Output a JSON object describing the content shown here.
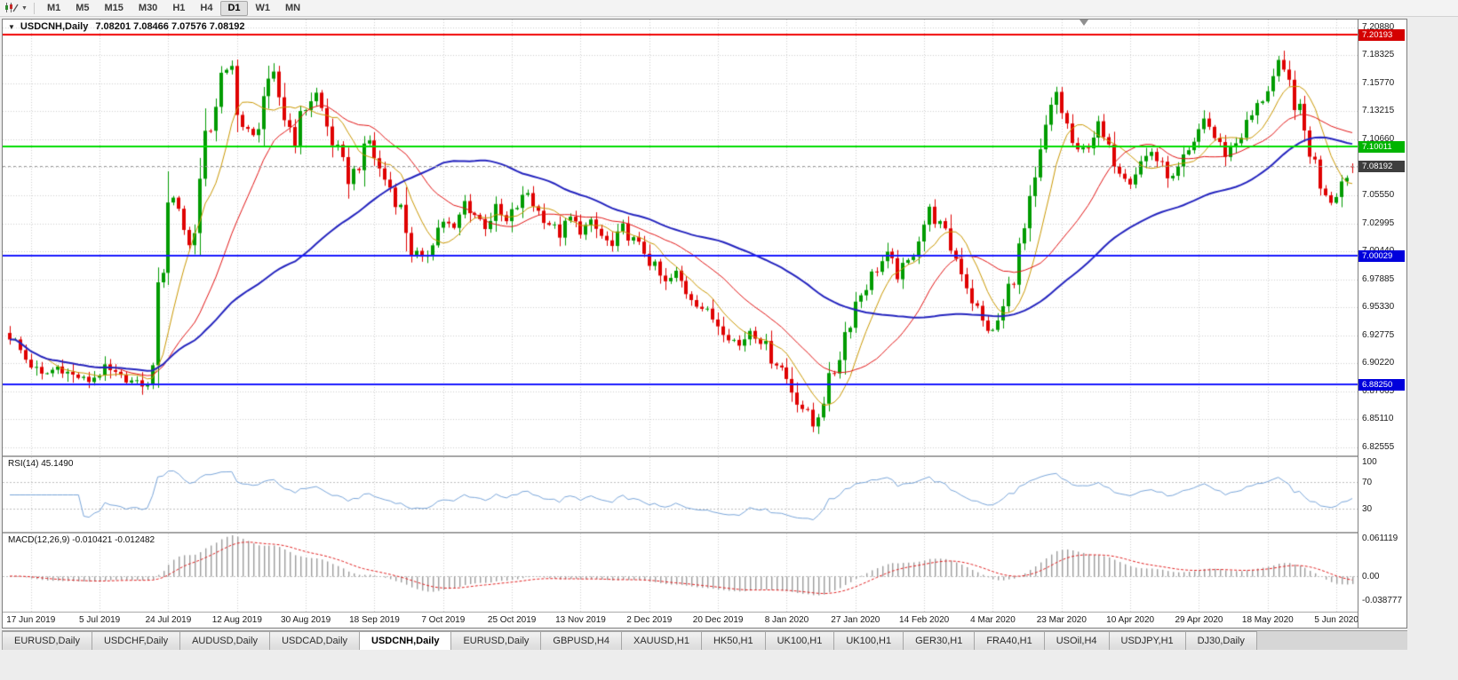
{
  "toolbar": {
    "timeframes": [
      {
        "label": "M1",
        "active": false
      },
      {
        "label": "M5",
        "active": false
      },
      {
        "label": "M15",
        "active": false
      },
      {
        "label": "M30",
        "active": false
      },
      {
        "label": "H1",
        "active": false
      },
      {
        "label": "H4",
        "active": false
      },
      {
        "label": "D1",
        "active": true
      },
      {
        "label": "W1",
        "active": false
      },
      {
        "label": "MN",
        "active": false
      }
    ]
  },
  "chart": {
    "title_symbol": "USDCNH,Daily",
    "title_ohlc": "7.08201 7.08466 7.07576 7.08192",
    "price_min": 6.818,
    "price_max": 7.216,
    "price_ticks": [
      "7.20880",
      "7.18325",
      "7.15770",
      "7.13215",
      "7.10660",
      "7.08105",
      "7.05550",
      "7.02995",
      "7.00440",
      "6.97885",
      "6.95330",
      "6.92775",
      "6.90220",
      "6.87665",
      "6.85110",
      "6.82555"
    ],
    "hlines": [
      {
        "price": 7.20193,
        "label": "7.20193",
        "color": "#F00000",
        "label_bg": "#D40000"
      },
      {
        "price": 7.10011,
        "label": "7.10011",
        "color": "#00DD00",
        "label_bg": "#00B400"
      },
      {
        "price": 7.00029,
        "label": "7.00029",
        "color": "#1A1AFF",
        "label_bg": "#0000DC"
      },
      {
        "price": 6.8825,
        "label": "6.88250",
        "color": "#1A1AFF",
        "label_bg": "#0000DC"
      }
    ],
    "current_price": {
      "price": 7.08192,
      "label": "7.08192",
      "label_bg": "#3E3E3E",
      "line_color": "#9A9A9A"
    },
    "dates": [
      "17 Jun 2019",
      "5 Jul 2019",
      "24 Jul 2019",
      "12 Aug 2019",
      "30 Aug 2019",
      "18 Sep 2019",
      "7 Oct 2019",
      "25 Oct 2019",
      "13 Nov 2019",
      "2 Dec 2019",
      "20 Dec 2019",
      "8 Jan 2020",
      "27 Jan 2020",
      "14 Feb 2020",
      "4 Mar 2020",
      "23 Mar 2020",
      "10 Apr 2020",
      "29 Apr 2020",
      "18 May 2020",
      "5 Jun 2020"
    ],
    "candle_up": "#009B00",
    "candle_down": "#DF0000",
    "grid_color": "#CFCFCF"
  },
  "indicators": {
    "rsi": {
      "label": "RSI(14) 45.1490",
      "levels": [
        "100",
        "70",
        "30"
      ],
      "line_color": "#79A5D9",
      "level_values": [
        70,
        30
      ]
    },
    "macd": {
      "label": "MACD(12,26,9) -0.010421 -0.012482",
      "axis": [
        "0.061119",
        "0.00",
        "-0.038777"
      ],
      "hist_color": "#9C9C9C",
      "signal_color": "#E02020"
    }
  },
  "tabs": [
    {
      "label": "EURUSD,Daily",
      "active": false
    },
    {
      "label": "USDCHF,Daily",
      "active": false
    },
    {
      "label": "AUDUSD,Daily",
      "active": false
    },
    {
      "label": "USDCAD,Daily",
      "active": false
    },
    {
      "label": "USDCNH,Daily",
      "active": true
    },
    {
      "label": "EURUSD,Daily",
      "active": false
    },
    {
      "label": "GBPUSD,H4",
      "active": false
    },
    {
      "label": "XAUUSD,H1",
      "active": false
    },
    {
      "label": "HK50,H1",
      "active": false
    },
    {
      "label": "UK100,H1",
      "active": false
    },
    {
      "label": "UK100,H1",
      "active": false
    },
    {
      "label": "GER30,H1",
      "active": false
    },
    {
      "label": "FRA40,H1",
      "active": false
    },
    {
      "label": "USOil,H4",
      "active": false
    },
    {
      "label": "USDJPY,H1",
      "active": false
    },
    {
      "label": "DJ30,Daily",
      "active": false
    }
  ],
  "chart_data": {
    "type": "candlestick",
    "symbol": "USDCNH",
    "timeframe": "Daily",
    "num_candles": 255,
    "ohlc_current": {
      "open": 7.08201,
      "high": 7.08466,
      "low": 7.07576,
      "close": 7.08192
    },
    "price_axis_range": [
      6.82555,
      7.2088
    ],
    "horizontal_levels": [
      7.20193,
      7.10011,
      7.00029,
      6.8825
    ],
    "rsi_current": 45.149,
    "macd_current": -0.010421,
    "macd_signal_current": -0.012482,
    "macd_axis_range": [
      -0.038777,
      0.061119
    ],
    "moving_averages": [
      {
        "period": 8,
        "color": "#C99700",
        "width": 1
      },
      {
        "period": 21,
        "color": "#E11414",
        "width": 1
      },
      {
        "period": 55,
        "color": "#2424BE",
        "width": 2
      }
    ],
    "price_path_anchors": [
      [
        0,
        6.928
      ],
      [
        3,
        6.906
      ],
      [
        6,
        6.89
      ],
      [
        9,
        6.899
      ],
      [
        12,
        6.891
      ],
      [
        15,
        6.886
      ],
      [
        18,
        6.897
      ],
      [
        21,
        6.889
      ],
      [
        24,
        6.884
      ],
      [
        26,
        6.881
      ],
      [
        28,
        6.955
      ],
      [
        30,
        7.06
      ],
      [
        32,
        7.045
      ],
      [
        34,
        7.008
      ],
      [
        36,
        7.065
      ],
      [
        38,
        7.125
      ],
      [
        40,
        7.16
      ],
      [
        42,
        7.172
      ],
      [
        44,
        7.118
      ],
      [
        46,
        7.108
      ],
      [
        48,
        7.148
      ],
      [
        50,
        7.163
      ],
      [
        52,
        7.128
      ],
      [
        54,
        7.108
      ],
      [
        56,
        7.138
      ],
      [
        58,
        7.148
      ],
      [
        60,
        7.118
      ],
      [
        62,
        7.093
      ],
      [
        64,
        7.072
      ],
      [
        66,
        7.083
      ],
      [
        68,
        7.105
      ],
      [
        70,
        7.078
      ],
      [
        72,
        7.063
      ],
      [
        74,
        7.043
      ],
      [
        76,
        7.008
      ],
      [
        78,
        6.993
      ],
      [
        80,
        7.018
      ],
      [
        82,
        7.033
      ],
      [
        84,
        7.023
      ],
      [
        86,
        7.048
      ],
      [
        88,
        7.038
      ],
      [
        90,
        7.028
      ],
      [
        92,
        7.042
      ],
      [
        94,
        7.03
      ],
      [
        96,
        7.046
      ],
      [
        98,
        7.058
      ],
      [
        100,
        7.04
      ],
      [
        102,
        7.03
      ],
      [
        104,
        7.02
      ],
      [
        106,
        7.034
      ],
      [
        108,
        7.024
      ],
      [
        110,
        7.03
      ],
      [
        112,
        7.018
      ],
      [
        114,
        7.008
      ],
      [
        116,
        7.024
      ],
      [
        118,
        7.014
      ],
      [
        120,
        7.004
      ],
      [
        122,
        6.988
      ],
      [
        124,
        6.974
      ],
      [
        126,
        6.984
      ],
      [
        128,
        6.968
      ],
      [
        130,
        6.958
      ],
      [
        132,
        6.948
      ],
      [
        134,
        6.938
      ],
      [
        136,
        6.928
      ],
      [
        138,
        6.918
      ],
      [
        140,
        6.934
      ],
      [
        142,
        6.924
      ],
      [
        144,
        6.908
      ],
      [
        146,
        6.898
      ],
      [
        148,
        6.878
      ],
      [
        150,
        6.862
      ],
      [
        152,
        6.845
      ],
      [
        154,
        6.872
      ],
      [
        156,
        6.896
      ],
      [
        158,
        6.93
      ],
      [
        160,
        6.958
      ],
      [
        162,
        6.974
      ],
      [
        164,
        6.99
      ],
      [
        166,
        7.0
      ],
      [
        168,
        6.984
      ],
      [
        170,
        6.994
      ],
      [
        172,
        7.02
      ],
      [
        174,
        7.04
      ],
      [
        176,
        7.028
      ],
      [
        178,
        7.008
      ],
      [
        180,
        6.988
      ],
      [
        182,
        6.962
      ],
      [
        184,
        6.938
      ],
      [
        186,
        6.93
      ],
      [
        188,
        6.952
      ],
      [
        190,
        6.986
      ],
      [
        192,
        7.022
      ],
      [
        194,
        7.062
      ],
      [
        196,
        7.112
      ],
      [
        198,
        7.148
      ],
      [
        200,
        7.118
      ],
      [
        202,
        7.088
      ],
      [
        204,
        7.104
      ],
      [
        206,
        7.118
      ],
      [
        208,
        7.094
      ],
      [
        210,
        7.08
      ],
      [
        212,
        7.07
      ],
      [
        214,
        7.086
      ],
      [
        216,
        7.096
      ],
      [
        218,
        7.08
      ],
      [
        220,
        7.07
      ],
      [
        222,
        7.086
      ],
      [
        224,
        7.1
      ],
      [
        226,
        7.128
      ],
      [
        228,
        7.108
      ],
      [
        230,
        7.094
      ],
      [
        232,
        7.104
      ],
      [
        234,
        7.12
      ],
      [
        236,
        7.136
      ],
      [
        238,
        7.154
      ],
      [
        240,
        7.172
      ],
      [
        242,
        7.158
      ],
      [
        244,
        7.128
      ],
      [
        246,
        7.098
      ],
      [
        248,
        7.068
      ],
      [
        250,
        7.052
      ],
      [
        252,
        7.068
      ],
      [
        254,
        7.082
      ]
    ]
  }
}
